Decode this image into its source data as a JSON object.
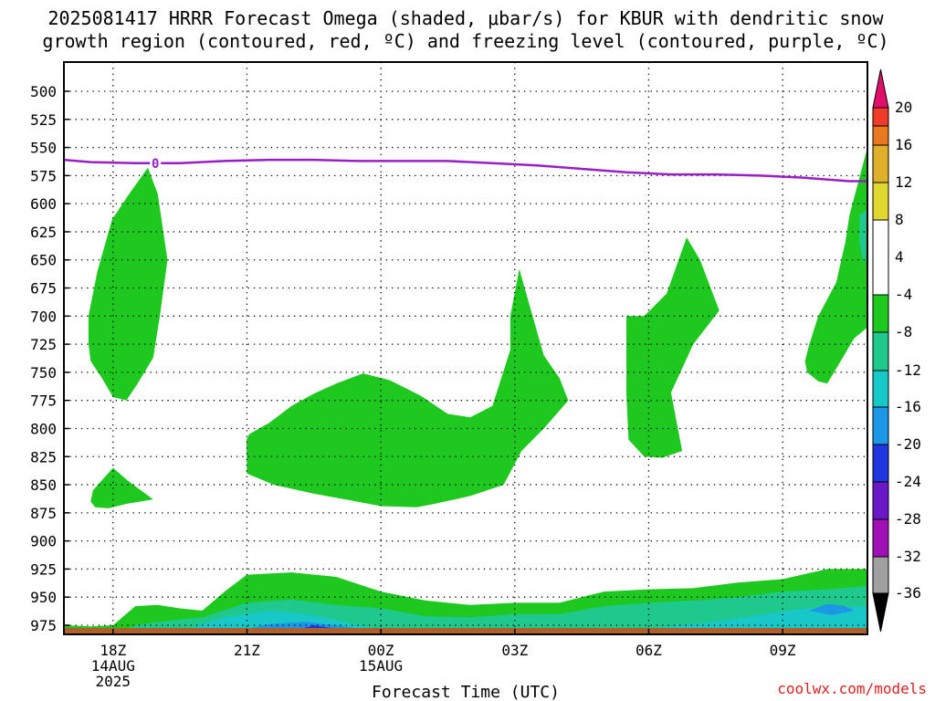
{
  "chart_data": {
    "type": "heatmap",
    "title_line1": "2025081417 HRRR Forecast Omega (shaded, μbar/s) for KBUR with dendritic snow",
    "title_line2": "growth region (contoured, red, ºC) and freezing level (contoured, purple, ºC)",
    "xlabel": "Forecast Time (UTC)",
    "credit": "coolwx.com/models",
    "y_axis": {
      "label": "",
      "inverted": true,
      "ticks": [
        500,
        525,
        550,
        575,
        600,
        625,
        650,
        675,
        700,
        725,
        750,
        775,
        800,
        825,
        850,
        875,
        900,
        925,
        950,
        975
      ]
    },
    "x_axis": {
      "ticks": [
        {
          "hour": 18,
          "lines": [
            "18Z",
            "14AUG",
            "2025"
          ]
        },
        {
          "hour": 21,
          "lines": [
            "21Z"
          ]
        },
        {
          "hour": 24,
          "lines": [
            "00Z",
            "15AUG"
          ]
        },
        {
          "hour": 27,
          "lines": [
            "03Z"
          ]
        },
        {
          "hour": 30,
          "lines": [
            "06Z"
          ]
        },
        {
          "hour": 33,
          "lines": [
            "09Z"
          ]
        }
      ]
    },
    "grid": true,
    "colorbar": {
      "labels": [
        "20",
        "16",
        "12",
        "8",
        "4",
        "-4",
        "-8",
        "-12",
        "-16",
        "-20",
        "-24",
        "-28",
        "-32",
        "-36"
      ],
      "colors": {
        "top_tri": "#e0106a",
        "c16_20": "#f03a2a",
        "c12_16": "#ea7820",
        "c8_12": "#e0b02c",
        "c4_8": "#e0d830",
        "c_4_4": "#ffffff",
        "cm8_m4": "#1ec81e",
        "cm12_m8": "#1fc88c",
        "cm16_m12": "#18c8c8",
        "cm20_m16": "#1c96e6",
        "cm24_m20": "#2036e0",
        "cm28_m24": "#6a18c8",
        "cm32_m28": "#a010b4",
        "cm36_m32": "#a0a0a0",
        "bottom_tri": "#000000"
      }
    },
    "freezing_level": {
      "color": "#9a1ec8",
      "contour_label": "0",
      "points": [
        [
          16.9,
          561
        ],
        [
          17.5,
          563
        ],
        [
          18.5,
          564
        ],
        [
          19.5,
          564
        ],
        [
          20.5,
          562
        ],
        [
          21.5,
          561
        ],
        [
          22.5,
          561
        ],
        [
          23.5,
          562
        ],
        [
          24.5,
          562
        ],
        [
          25.5,
          562
        ],
        [
          26.5,
          564
        ],
        [
          27.5,
          566
        ],
        [
          28.5,
          569
        ],
        [
          29.5,
          572
        ],
        [
          30.5,
          574
        ],
        [
          31.5,
          574
        ],
        [
          32.5,
          575
        ],
        [
          33.5,
          577
        ],
        [
          34.5,
          580
        ],
        [
          34.9,
          580
        ]
      ]
    },
    "omega_regions": [
      {
        "level": "-8 to -4",
        "points": [
          [
            17.45,
            725
          ],
          [
            17.45,
            700
          ],
          [
            17.65,
            660
          ],
          [
            17.98,
            614
          ],
          [
            18.35,
            592
          ],
          [
            18.78,
            568
          ],
          [
            19.0,
            591
          ],
          [
            19.22,
            650
          ],
          [
            19.05,
            700
          ],
          [
            18.9,
            737
          ],
          [
            18.55,
            760
          ],
          [
            18.3,
            775
          ],
          [
            18.0,
            772
          ],
          [
            17.75,
            755
          ],
          [
            17.5,
            740
          ]
        ]
      },
      {
        "level": "-8 to -4",
        "points": [
          [
            17.5,
            865
          ],
          [
            17.55,
            855
          ],
          [
            17.75,
            846
          ],
          [
            18.0,
            835
          ],
          [
            18.35,
            847
          ],
          [
            18.9,
            863
          ],
          [
            18.3,
            867
          ],
          [
            17.9,
            871
          ],
          [
            17.6,
            870
          ]
        ]
      },
      {
        "level": "-8 to -4",
        "points": [
          [
            20.99,
            810
          ],
          [
            21.05,
            805
          ],
          [
            21.5,
            795
          ],
          [
            22.0,
            780
          ],
          [
            22.5,
            769
          ],
          [
            23.0,
            760
          ],
          [
            23.6,
            751
          ],
          [
            24.2,
            757
          ],
          [
            24.9,
            771
          ],
          [
            25.5,
            787
          ],
          [
            26.0,
            790
          ],
          [
            26.5,
            780
          ],
          [
            26.9,
            730
          ],
          [
            26.9,
            700
          ],
          [
            27.1,
            658
          ],
          [
            27.4,
            700
          ],
          [
            27.65,
            735
          ],
          [
            28.0,
            755
          ],
          [
            28.2,
            775
          ],
          [
            27.65,
            800
          ],
          [
            27.15,
            820
          ],
          [
            26.75,
            850
          ],
          [
            26.0,
            860
          ],
          [
            25.2,
            867
          ],
          [
            24.8,
            870
          ],
          [
            24.0,
            869
          ],
          [
            23.2,
            863
          ],
          [
            22.5,
            858
          ],
          [
            21.6,
            850
          ],
          [
            21.0,
            840
          ]
        ]
      },
      {
        "level": "-8 to -4",
        "points": [
          [
            29.5,
            700
          ],
          [
            29.9,
            700
          ],
          [
            30.4,
            680
          ],
          [
            30.85,
            630
          ],
          [
            31.15,
            650
          ],
          [
            31.58,
            695
          ],
          [
            31.0,
            725
          ],
          [
            30.5,
            768
          ],
          [
            30.75,
            820
          ],
          [
            30.3,
            826
          ],
          [
            29.9,
            825
          ],
          [
            29.55,
            810
          ],
          [
            29.5,
            770
          ]
        ]
      },
      {
        "level": "-8 to -4",
        "points": [
          [
            33.5,
            740
          ],
          [
            33.6,
            725
          ],
          [
            33.8,
            700
          ],
          [
            34.2,
            670
          ],
          [
            34.4,
            635
          ],
          [
            34.5,
            610
          ],
          [
            34.9,
            550
          ],
          [
            34.9,
            710
          ],
          [
            34.6,
            720
          ],
          [
            34.3,
            740
          ],
          [
            34.0,
            760
          ],
          [
            33.8,
            758
          ],
          [
            33.55,
            750
          ]
        ]
      },
      {
        "level": "-12 to -8",
        "points": [
          [
            34.72,
            610
          ],
          [
            34.9,
            605
          ],
          [
            34.9,
            640
          ],
          [
            34.82,
            655
          ],
          [
            34.72,
            635
          ]
        ]
      },
      {
        "level": "-8 to -4",
        "points": [
          [
            16.9,
            975
          ],
          [
            17.5,
            976
          ],
          [
            18.0,
            975
          ],
          [
            18.5,
            958
          ],
          [
            19.0,
            957
          ],
          [
            19.5,
            960
          ],
          [
            20.0,
            962
          ],
          [
            20.5,
            945
          ],
          [
            21.0,
            930
          ],
          [
            22.0,
            928
          ],
          [
            23.0,
            932
          ],
          [
            24.0,
            945
          ],
          [
            25.0,
            953
          ],
          [
            26.0,
            957
          ],
          [
            27.0,
            955
          ],
          [
            28.0,
            955
          ],
          [
            29.0,
            945
          ],
          [
            30.0,
            943
          ],
          [
            31.0,
            942
          ],
          [
            32.0,
            937
          ],
          [
            33.0,
            934
          ],
          [
            34.0,
            925
          ],
          [
            34.9,
            925
          ],
          [
            34.9,
            990
          ],
          [
            16.9,
            990
          ]
        ]
      },
      {
        "level": "-12 to -8",
        "points": [
          [
            16.9,
            985
          ],
          [
            18.0,
            985
          ],
          [
            18.5,
            975
          ],
          [
            19.0,
            972
          ],
          [
            20.0,
            968
          ],
          [
            21.0,
            955
          ],
          [
            22.0,
            952
          ],
          [
            23.0,
            957
          ],
          [
            24.0,
            960
          ],
          [
            25.0,
            967
          ],
          [
            26.0,
            968
          ],
          [
            27.0,
            965
          ],
          [
            28.0,
            965
          ],
          [
            29.0,
            958
          ],
          [
            30.0,
            955
          ],
          [
            31.0,
            953
          ],
          [
            32.0,
            950
          ],
          [
            33.0,
            945
          ],
          [
            34.0,
            943
          ],
          [
            34.9,
            940
          ],
          [
            34.9,
            990
          ],
          [
            16.9,
            990
          ]
        ]
      },
      {
        "level": "-16 to -12",
        "points": [
          [
            18.8,
            990
          ],
          [
            19.5,
            980
          ],
          [
            20.5,
            968
          ],
          [
            21.5,
            962
          ],
          [
            22.5,
            966
          ],
          [
            23.5,
            975
          ],
          [
            24.5,
            982
          ],
          [
            25.5,
            985
          ],
          [
            26.5,
            982
          ],
          [
            27.5,
            980
          ],
          [
            28.5,
            982
          ],
          [
            29.5,
            980
          ],
          [
            30.5,
            976
          ],
          [
            31.5,
            972
          ],
          [
            32.5,
            966
          ],
          [
            33.5,
            960
          ],
          [
            34.9,
            958
          ],
          [
            34.9,
            990
          ]
        ]
      },
      {
        "level": "-20 to -16",
        "points": [
          [
            20.0,
            990
          ],
          [
            20.8,
            980
          ],
          [
            21.5,
            974
          ],
          [
            22.3,
            972
          ],
          [
            23.2,
            976
          ],
          [
            24.0,
            983
          ],
          [
            24.8,
            988
          ],
          [
            25.6,
            990
          ]
        ]
      },
      {
        "level": "-20 to -16",
        "points": [
          [
            33.6,
            962
          ],
          [
            34.0,
            956
          ],
          [
            34.4,
            958
          ],
          [
            34.6,
            962
          ],
          [
            34.1,
            966
          ]
        ]
      },
      {
        "level": "-24 to -20",
        "points": [
          [
            21.8,
            990
          ],
          [
            22.0,
            980
          ],
          [
            22.5,
            975
          ],
          [
            23.0,
            978
          ],
          [
            23.4,
            986
          ],
          [
            23.5,
            990
          ]
        ]
      }
    ],
    "surface": {
      "color": "#b0602a"
    }
  }
}
